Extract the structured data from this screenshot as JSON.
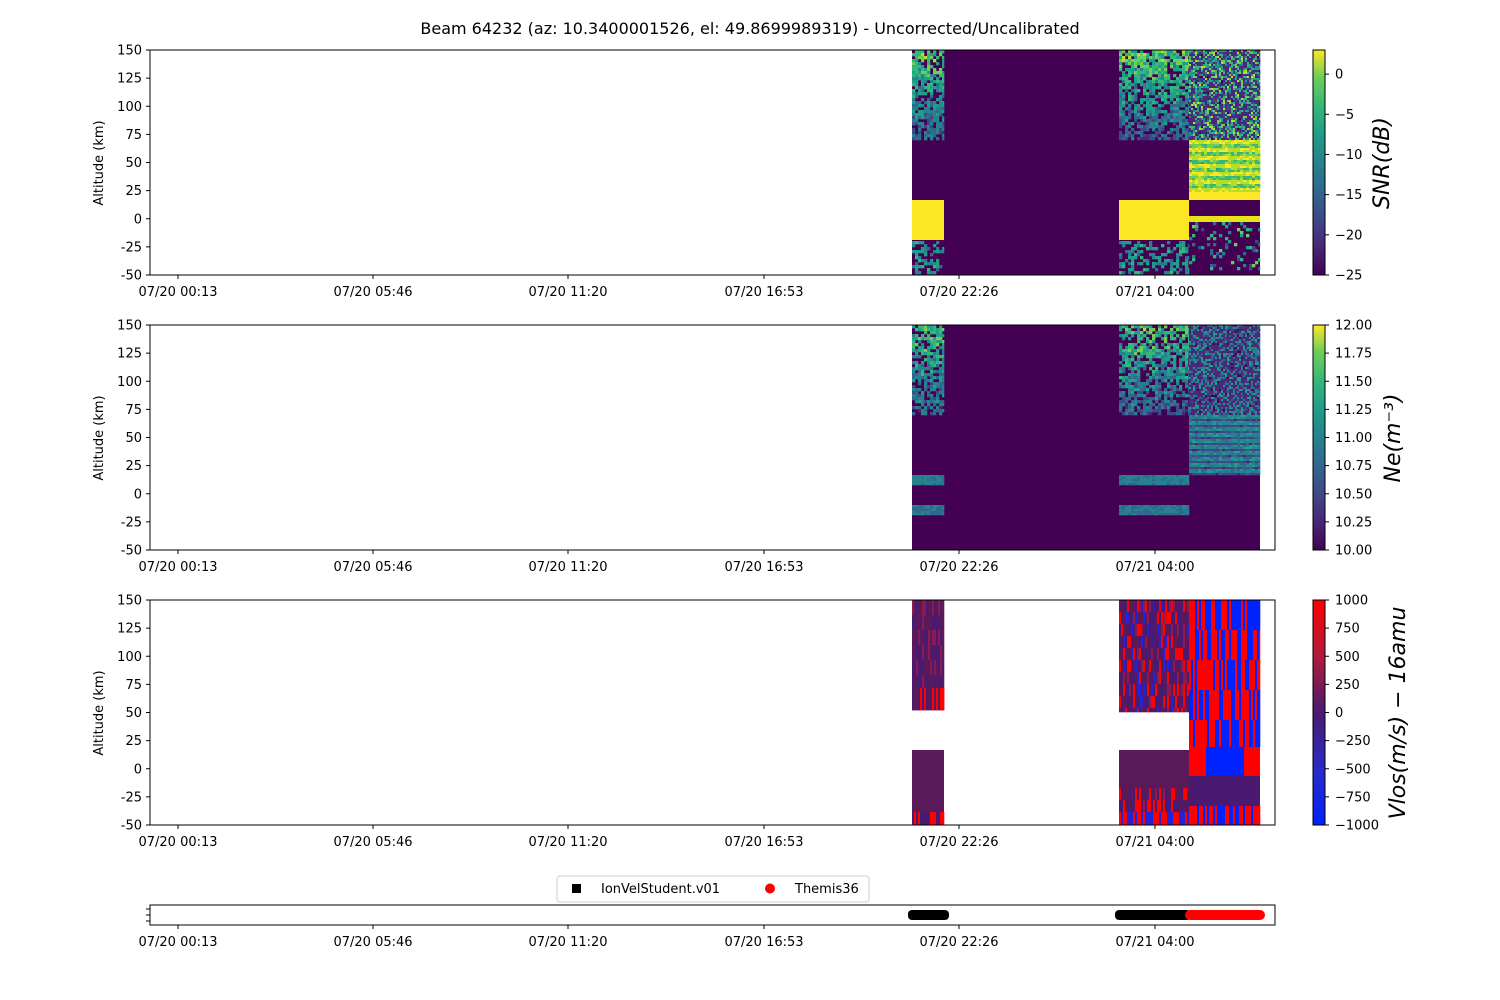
{
  "figure": {
    "title": "Beam 64232 (az: 10.3400001526, el: 49.8699989319) - Uncorrected/Uncalibrated"
  },
  "x_axis": {
    "tick_labels": [
      "07/20 00:13",
      "07/20 05:46",
      "07/20 11:20",
      "07/20 16:53",
      "07/20 22:26",
      "07/21 04:00"
    ]
  },
  "chart_data": [
    {
      "type": "heatmap",
      "panel": "snr",
      "ylabel": "Altitude (km)",
      "yticks": [
        150,
        125,
        100,
        75,
        50,
        25,
        0,
        -25,
        -50
      ],
      "ylim": [
        -50,
        150
      ],
      "colorbar": {
        "label": "SNR(dB)",
        "ticks": [
          "0",
          "−5",
          "−10",
          "−15",
          "−20",
          "−25"
        ],
        "range": [
          -25,
          3
        ],
        "colormap": "viridis"
      }
    },
    {
      "type": "heatmap",
      "panel": "ne",
      "ylabel": "Altitude (km)",
      "yticks": [
        150,
        125,
        100,
        75,
        50,
        25,
        0,
        -25,
        -50
      ],
      "ylim": [
        -50,
        150
      ],
      "colorbar": {
        "label": "Ne(m⁻³)",
        "ticks": [
          "12.00",
          "11.75",
          "11.50",
          "11.25",
          "11.00",
          "10.75",
          "10.50",
          "10.25",
          "10.00"
        ],
        "range": [
          10,
          12
        ],
        "colormap": "viridis"
      }
    },
    {
      "type": "heatmap",
      "panel": "vlos",
      "ylabel": "Altitude (km)",
      "yticks": [
        150,
        125,
        100,
        75,
        50,
        25,
        0,
        -25,
        -50
      ],
      "ylim": [
        -50,
        150
      ],
      "colorbar": {
        "label": "Vlos(m/s) − 16amu",
        "ticks": [
          "1000",
          "750",
          "500",
          "250",
          "0",
          "−250",
          "−500",
          "−750",
          "−1000"
        ],
        "range": [
          -1000,
          1000
        ],
        "colormap": "blue-purple-red"
      }
    },
    {
      "type": "scatter",
      "panel": "availability",
      "legend": {
        "placement": "top-center",
        "entries": [
          {
            "name": "IonVelStudent.v01",
            "color": "#000000",
            "marker": "square"
          },
          {
            "name": "Themis36",
            "color": "#ff0000",
            "marker": "circle"
          }
        ]
      }
    }
  ],
  "colors": {
    "viridis_dark": "#440154",
    "viridis_yellow": "#fde725",
    "vlos_red": "#ff0000",
    "vlos_blue": "#0022ff"
  }
}
